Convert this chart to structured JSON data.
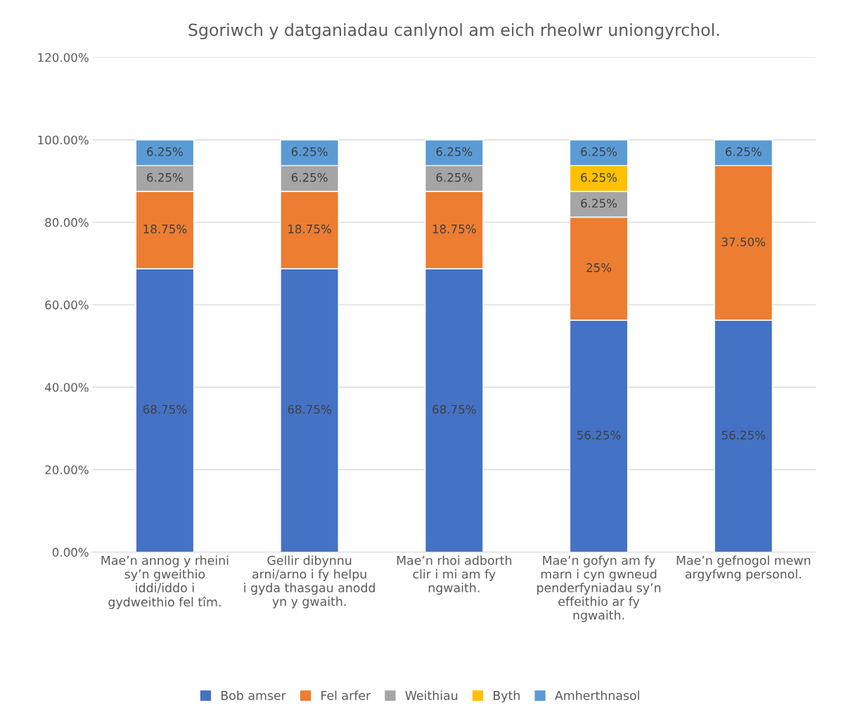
{
  "chart_data": {
    "type": "bar",
    "stacked": true,
    "title": "Sgoriwch y datganiadau canlynol am eich rheolwr uniongyrchol.",
    "categories": [
      "Mae’n annog y rheini sy’n gweithio iddi/iddo i gydweithio fel tîm.",
      "Gellir dibynnu arni/arno i fy helpu i gyda thasgau anodd yn y gwaith.",
      "Mae’n rhoi adborth clir i mi am fy ngwaith.",
      "Mae’n gofyn am fy marn i cyn gwneud penderfyniadau sy’n effeithio ar fy ngwaith.",
      "Mae’n gefnogol mewn argyfwng personol."
    ],
    "series": [
      {
        "name": "Bob amser",
        "color": "#4472c4",
        "values": [
          68.75,
          68.75,
          68.75,
          56.25,
          56.25
        ],
        "value_labels": [
          "68.75%",
          "68.75%",
          "68.75%",
          "56.25%",
          "56.25%"
        ]
      },
      {
        "name": "Fel arfer",
        "color": "#ed7d31",
        "values": [
          18.75,
          18.75,
          18.75,
          25,
          37.5
        ],
        "value_labels": [
          "18.75%",
          "18.75%",
          "18.75%",
          "25%",
          "37.50%"
        ]
      },
      {
        "name": "Weithiau",
        "color": "#a5a5a5",
        "values": [
          6.25,
          6.25,
          6.25,
          6.25,
          null
        ],
        "value_labels": [
          "6.25%",
          "6.25%",
          "6.25%",
          "6.25%",
          null
        ]
      },
      {
        "name": "Byth",
        "color": "#ffc000",
        "values": [
          null,
          null,
          null,
          6.25,
          null
        ],
        "value_labels": [
          null,
          null,
          null,
          "6.25%",
          null
        ]
      },
      {
        "name": "Amherthnasol",
        "color": "#5b9bd5",
        "values": [
          6.25,
          6.25,
          6.25,
          6.25,
          6.25
        ],
        "value_labels": [
          "6.25%",
          "6.25%",
          "6.25%",
          "6.25%",
          "6.25%"
        ]
      }
    ],
    "ylim": [
      0,
      120
    ],
    "yticks": [
      {
        "value": 0,
        "label": "0.00%"
      },
      {
        "value": 20,
        "label": "20.00%"
      },
      {
        "value": 40,
        "label": "40.00%"
      },
      {
        "value": 60,
        "label": "60.00%"
      },
      {
        "value": 80,
        "label": "80.00%"
      },
      {
        "value": 100,
        "label": "100.00%"
      },
      {
        "value": 120,
        "label": "120.00%"
      }
    ],
    "grid": "y",
    "legend": "bottom"
  }
}
